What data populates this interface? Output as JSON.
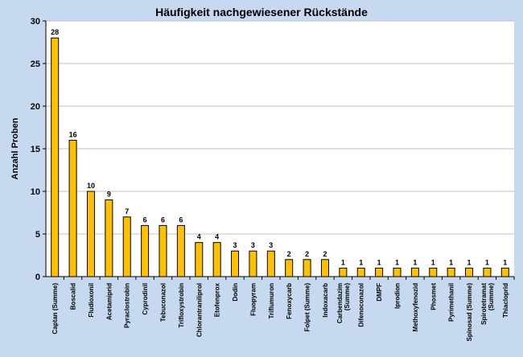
{
  "colors": {
    "page_background": "#c6d9f1",
    "plot_background": "#ffffff",
    "bar_fill": "#ffc000",
    "bar_stroke": "#000000",
    "grid": "#c0c0c0"
  },
  "chart_data": {
    "type": "bar",
    "title": "Häufigkeit nachgewiesener Rückstände",
    "xlabel": "",
    "ylabel": "Anzahl Proben",
    "ylim": [
      0,
      30
    ],
    "yticks": [
      0,
      5,
      10,
      15,
      20,
      25,
      30
    ],
    "grid": true,
    "legend": "none",
    "categories": [
      [
        "Captan (Summe)"
      ],
      [
        "Boscalid"
      ],
      [
        "Fludioxonil"
      ],
      [
        "Acetamiprid"
      ],
      [
        "Pyraclostrobin"
      ],
      [
        "Cyprodinil"
      ],
      [
        "Tebuconazol"
      ],
      [
        "Trifloxystrobin"
      ],
      [
        "Chlorantraniliprol"
      ],
      [
        "Etofenprox"
      ],
      [
        "Dodin"
      ],
      [
        "Fluopyram"
      ],
      [
        "Triflumuron"
      ],
      [
        "Fenoxycarb"
      ],
      [
        "Folpet (Summe)"
      ],
      [
        "Indoxacarb"
      ],
      [
        "Carbendazim",
        "(Summe)"
      ],
      [
        "Difenoconazol"
      ],
      [
        "DMPF"
      ],
      [
        "Iprodion"
      ],
      [
        "Methoxyfenozid"
      ],
      [
        "Phosmet"
      ],
      [
        "Pyrimethanil"
      ],
      [
        "Spinosad (Summe)"
      ],
      [
        "Spirotetramat",
        "(Summe)"
      ],
      [
        "Thiacloprid"
      ]
    ],
    "values": [
      28,
      16,
      10,
      9,
      7,
      6,
      6,
      6,
      4,
      4,
      3,
      3,
      3,
      2,
      2,
      2,
      1,
      1,
      1,
      1,
      1,
      1,
      1,
      1,
      1,
      1
    ]
  }
}
